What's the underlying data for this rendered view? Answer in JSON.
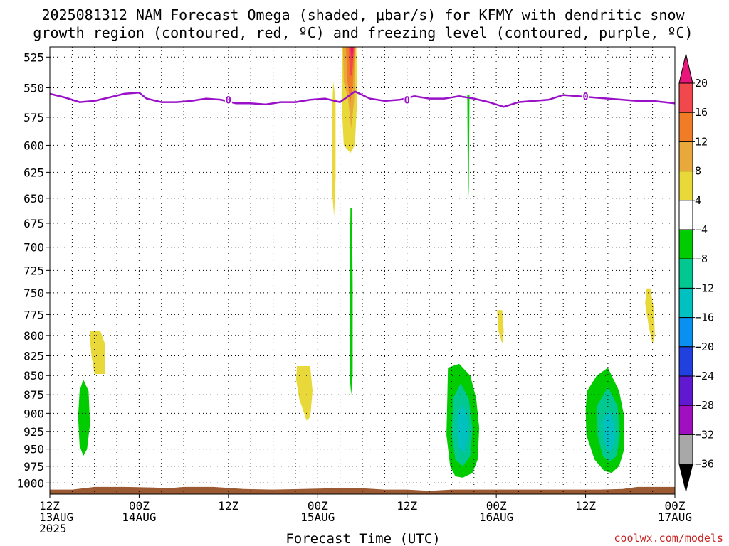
{
  "chart_data": {
    "type": "time-height contour",
    "title_lines": [
      "2025081312 NAM Forecast Omega (shaded, μbar/s) for KFMY with dendritic snow",
      "growth region (contoured, red, ºC) and freezing level (contoured, purple, ºC)"
    ],
    "xlabel": "Forecast Time (UTC)",
    "credit": "coolwx.com/models",
    "x_ticks": [
      {
        "top": "12Z",
        "mid": "13AUG",
        "bot": "2025",
        "hour": 0
      },
      {
        "top": "00Z",
        "mid": "14AUG",
        "bot": "",
        "hour": 12
      },
      {
        "top": "12Z",
        "mid": "",
        "bot": "",
        "hour": 24
      },
      {
        "top": "00Z",
        "mid": "15AUG",
        "bot": "",
        "hour": 36
      },
      {
        "top": "12Z",
        "mid": "",
        "bot": "",
        "hour": 48
      },
      {
        "top": "00Z",
        "mid": "16AUG",
        "bot": "",
        "hour": 60
      },
      {
        "top": "12Z",
        "mid": "",
        "bot": "",
        "hour": 72
      },
      {
        "top": "00Z",
        "mid": "17AUG",
        "bot": "",
        "hour": 84
      }
    ],
    "xlim_hours": [
      0,
      84
    ],
    "y_ticks": [
      "525",
      "550",
      "575",
      "600",
      "625",
      "650",
      "675",
      "700",
      "725",
      "750",
      "775",
      "800",
      "825",
      "850",
      "875",
      "900",
      "925",
      "950",
      "975",
      "1000"
    ],
    "ylim_hpa": [
      517,
      1017
    ],
    "y_scale": "log-pressure (inverted)",
    "grid": "dotted",
    "colorbar": {
      "labels": [
        "20",
        "16",
        "12",
        "8",
        "4",
        "−4",
        "−8",
        "−12",
        "−16",
        "−20",
        "−24",
        "−28",
        "−32",
        "−36"
      ],
      "colors": [
        "#e8157a",
        "#f0484c",
        "#f07c28",
        "#e8a83c",
        "#e8d83a",
        "#ffffff",
        "#00cc00",
        "#00c890",
        "#00c0c0",
        "#0a90f0",
        "#2040e0",
        "#6018d0",
        "#a010c0",
        "#a8a8a8",
        "#000000"
      ]
    },
    "freezing_level": {
      "color": "#9a10c8",
      "label": "0",
      "points": [
        [
          0,
          555
        ],
        [
          2,
          558
        ],
        [
          4,
          562
        ],
        [
          6,
          561
        ],
        [
          8,
          558
        ],
        [
          10,
          555
        ],
        [
          12,
          554
        ],
        [
          13,
          559
        ],
        [
          15,
          562
        ],
        [
          17,
          562
        ],
        [
          19,
          561
        ],
        [
          21,
          559
        ],
        [
          23,
          560
        ],
        [
          25,
          563
        ],
        [
          27,
          563
        ],
        [
          29,
          564
        ],
        [
          31,
          562
        ],
        [
          33,
          562
        ],
        [
          35,
          560
        ],
        [
          37,
          559
        ],
        [
          39,
          562
        ],
        [
          41,
          553
        ],
        [
          43,
          559
        ],
        [
          45,
          561
        ],
        [
          47,
          560
        ],
        [
          49,
          557
        ],
        [
          51,
          559
        ],
        [
          53,
          559
        ],
        [
          55,
          557
        ],
        [
          57,
          559
        ],
        [
          59,
          562
        ],
        [
          61,
          566
        ],
        [
          63,
          562
        ],
        [
          65,
          561
        ],
        [
          67,
          560
        ],
        [
          69,
          556
        ],
        [
          71,
          557
        ],
        [
          73,
          558
        ],
        [
          75,
          559
        ],
        [
          77,
          560
        ],
        [
          79,
          561
        ],
        [
          81,
          561
        ],
        [
          84,
          563
        ]
      ],
      "label_hours": [
        24,
        48,
        72
      ]
    },
    "omega_regions": [
      {
        "color": "#e8d83a",
        "points": [
          [
            5.4,
            795
          ],
          [
            6.8,
            795
          ],
          [
            7.4,
            810
          ],
          [
            7.4,
            848
          ],
          [
            6.0,
            848
          ],
          [
            5.6,
            825
          ],
          [
            5.4,
            805
          ]
        ]
      },
      {
        "color": "#00cc00",
        "points": [
          [
            4.0,
            870
          ],
          [
            4.5,
            855
          ],
          [
            5.2,
            870
          ],
          [
            5.4,
            915
          ],
          [
            5.0,
            950
          ],
          [
            4.5,
            960
          ],
          [
            4.0,
            945
          ],
          [
            3.8,
            905
          ]
        ]
      },
      {
        "color": "#e8d83a",
        "points": [
          [
            33.2,
            838
          ],
          [
            35.0,
            838
          ],
          [
            35.3,
            870
          ],
          [
            35.0,
            905
          ],
          [
            34.5,
            910
          ],
          [
            33.5,
            880
          ],
          [
            33.1,
            855
          ]
        ]
      },
      {
        "color": "#e8d83a",
        "points": [
          [
            38.1,
            545
          ],
          [
            38.4,
            560
          ],
          [
            38.4,
            630
          ],
          [
            38.2,
            668
          ],
          [
            37.9,
            640
          ],
          [
            37.9,
            575
          ]
        ]
      },
      {
        "color": "#00cc00",
        "points": [
          [
            40.4,
            660
          ],
          [
            40.6,
            660
          ],
          [
            40.7,
            740
          ],
          [
            40.7,
            850
          ],
          [
            40.5,
            875
          ],
          [
            40.3,
            850
          ],
          [
            40.3,
            740
          ]
        ]
      },
      {
        "color": "#e8d83a",
        "points": [
          [
            39.3,
            515
          ],
          [
            41.2,
            515
          ],
          [
            41.3,
            560
          ],
          [
            41.0,
            600
          ],
          [
            40.4,
            607
          ],
          [
            39.5,
            600
          ],
          [
            39.2,
            560
          ]
        ]
      },
      {
        "color": "#e8a83c",
        "points": [
          [
            39.4,
            515
          ],
          [
            41.1,
            515
          ],
          [
            40.9,
            560
          ],
          [
            40.5,
            585
          ],
          [
            40.1,
            560
          ],
          [
            39.5,
            545
          ]
        ]
      },
      {
        "color": "#f07c28",
        "points": [
          [
            39.8,
            515
          ],
          [
            41.0,
            515
          ],
          [
            40.7,
            550
          ],
          [
            40.4,
            562
          ],
          [
            40.0,
            545
          ]
        ]
      },
      {
        "color": "#f0484c",
        "points": [
          [
            40.2,
            515
          ],
          [
            40.9,
            515
          ],
          [
            40.6,
            540
          ],
          [
            40.3,
            540
          ]
        ]
      },
      {
        "color": "#e8157a",
        "points": [
          [
            40.4,
            515
          ],
          [
            40.8,
            515
          ],
          [
            40.6,
            530
          ]
        ]
      },
      {
        "color": "#00cc00",
        "points": [
          [
            56.1,
            556
          ],
          [
            56.4,
            556
          ],
          [
            56.3,
            640
          ],
          [
            56.2,
            660
          ]
        ]
      },
      {
        "color": "#e8d83a",
        "points": [
          [
            60.1,
            770
          ],
          [
            60.8,
            770
          ],
          [
            61.0,
            795
          ],
          [
            60.8,
            810
          ],
          [
            60.3,
            795
          ]
        ]
      },
      {
        "color": "#00cc00",
        "points": [
          [
            53.5,
            840
          ],
          [
            55.0,
            835
          ],
          [
            56.5,
            850
          ],
          [
            57.3,
            880
          ],
          [
            57.7,
            920
          ],
          [
            57.5,
            965
          ],
          [
            56.8,
            985
          ],
          [
            55.5,
            992
          ],
          [
            54.5,
            990
          ],
          [
            53.8,
            975
          ],
          [
            53.3,
            930
          ],
          [
            53.4,
            885
          ]
        ]
      },
      {
        "color": "#00c890",
        "points": [
          [
            54.2,
            880
          ],
          [
            55.2,
            860
          ],
          [
            56.3,
            880
          ],
          [
            56.8,
            920
          ],
          [
            56.5,
            960
          ],
          [
            55.5,
            975
          ],
          [
            54.5,
            965
          ],
          [
            54.0,
            930
          ]
        ]
      },
      {
        "color": "#00c0c0",
        "points": [
          [
            54.8,
            900
          ],
          [
            55.5,
            888
          ],
          [
            56.1,
            905
          ],
          [
            56.3,
            930
          ],
          [
            55.8,
            955
          ],
          [
            55.0,
            950
          ],
          [
            54.7,
            925
          ]
        ]
      },
      {
        "color": "#e8d83a",
        "points": [
          [
            80.2,
            745
          ],
          [
            80.7,
            745
          ],
          [
            81.2,
            770
          ],
          [
            81.3,
            800
          ],
          [
            81.0,
            810
          ],
          [
            80.5,
            790
          ],
          [
            80.0,
            762
          ]
        ]
      },
      {
        "color": "#00cc00",
        "points": [
          [
            72.2,
            870
          ],
          [
            73.5,
            850
          ],
          [
            75.0,
            840
          ],
          [
            76.5,
            870
          ],
          [
            77.2,
            905
          ],
          [
            77.2,
            950
          ],
          [
            76.5,
            975
          ],
          [
            75.5,
            985
          ],
          [
            74.5,
            982
          ],
          [
            73.2,
            965
          ],
          [
            72.1,
            930
          ],
          [
            72.0,
            895
          ]
        ]
      },
      {
        "color": "#00c890",
        "points": [
          [
            73.5,
            890
          ],
          [
            75.0,
            865
          ],
          [
            76.3,
            890
          ],
          [
            76.6,
            930
          ],
          [
            76.2,
            960
          ],
          [
            75.2,
            968
          ],
          [
            74.3,
            960
          ],
          [
            73.6,
            930
          ]
        ]
      },
      {
        "color": "#00c0c0",
        "points": [
          [
            74.3,
            910
          ],
          [
            75.2,
            895
          ],
          [
            75.9,
            915
          ],
          [
            76.0,
            935
          ],
          [
            75.5,
            952
          ],
          [
            74.8,
            950
          ],
          [
            74.4,
            930
          ]
        ]
      }
    ],
    "terrain": {
      "color": "#9c5a32",
      "points": [
        [
          0,
          1010
        ],
        [
          3,
          1010
        ],
        [
          6,
          1006
        ],
        [
          10,
          1006
        ],
        [
          14,
          1007
        ],
        [
          16,
          1008
        ],
        [
          18,
          1006
        ],
        [
          22,
          1006
        ],
        [
          26,
          1009
        ],
        [
          30,
          1010
        ],
        [
          34,
          1009
        ],
        [
          38,
          1008
        ],
        [
          42,
          1008
        ],
        [
          45,
          1010
        ],
        [
          48,
          1010
        ],
        [
          51,
          1012
        ],
        [
          54,
          1010
        ],
        [
          58,
          1010
        ],
        [
          62,
          1010
        ],
        [
          66,
          1010
        ],
        [
          70,
          1010
        ],
        [
          74,
          1010
        ],
        [
          77,
          1009
        ],
        [
          79,
          1006
        ],
        [
          84,
          1006
        ]
      ]
    }
  }
}
